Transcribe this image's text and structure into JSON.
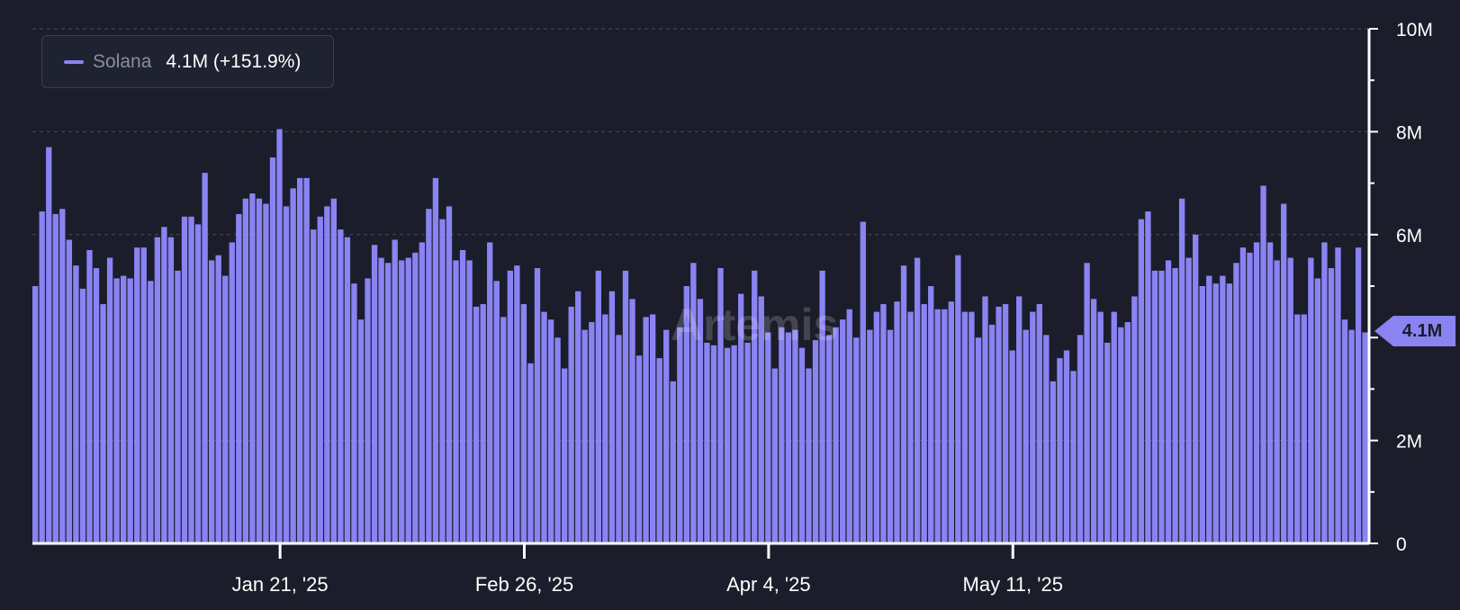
{
  "colors": {
    "background": "#1b1d2a",
    "bar": "#8a83f2",
    "grid": "#4a4d5c",
    "axis": "#ffffff",
    "text": "#ffffff",
    "legend_name": "#8a8d9c"
  },
  "legend": {
    "name": "Solana",
    "value": "4.1M (+151.9%)"
  },
  "watermark": "Artemis",
  "last_value_label": "4.1M",
  "chart_data": {
    "type": "bar",
    "series": [
      {
        "name": "Solana",
        "values": [
          5.0,
          6.45,
          7.7,
          6.4,
          6.5,
          5.9,
          5.4,
          4.95,
          5.7,
          5.35,
          4.65,
          5.55,
          5.15,
          5.2,
          5.15,
          5.75,
          5.75,
          5.1,
          5.95,
          6.15,
          5.95,
          5.3,
          6.35,
          6.35,
          6.2,
          7.2,
          5.5,
          5.6,
          5.2,
          5.85,
          6.4,
          6.7,
          6.8,
          6.7,
          6.6,
          7.5,
          8.05,
          6.55,
          6.9,
          7.1,
          7.1,
          6.1,
          6.35,
          6.55,
          6.7,
          6.1,
          5.95,
          5.05,
          4.35,
          5.15,
          5.8,
          5.55,
          5.45,
          5.9,
          5.5,
          5.55,
          5.65,
          5.85,
          6.5,
          7.1,
          6.3,
          6.55,
          5.5,
          5.7,
          5.5,
          4.6,
          4.65,
          5.85,
          5.1,
          4.4,
          5.3,
          5.4,
          4.65,
          3.5,
          5.35,
          4.5,
          4.35,
          4.0,
          3.4,
          4.6,
          4.9,
          4.15,
          4.3,
          5.3,
          4.45,
          4.9,
          4.05,
          5.3,
          4.75,
          3.65,
          4.4,
          4.45,
          3.6,
          4.15,
          3.15,
          4.2,
          5.0,
          5.45,
          4.75,
          3.9,
          3.85,
          5.35,
          3.8,
          3.85,
          4.85,
          3.9,
          5.3,
          4.8,
          4.1,
          3.4,
          4.2,
          4.1,
          4.15,
          3.8,
          3.4,
          3.95,
          5.3,
          4.05,
          4.2,
          4.35,
          4.55,
          4.0,
          6.25,
          4.15,
          4.5,
          4.65,
          4.15,
          4.7,
          5.4,
          4.5,
          5.55,
          4.65,
          5.0,
          4.55,
          4.55,
          4.7,
          5.6,
          4.5,
          4.5,
          4.0,
          4.8,
          4.25,
          4.6,
          4.65,
          3.75,
          4.8,
          4.15,
          4.5,
          4.65,
          4.05,
          3.15,
          3.6,
          3.75,
          3.35,
          4.05,
          5.45,
          4.75,
          4.5,
          3.9,
          4.5,
          4.2,
          4.3,
          4.8,
          6.3,
          6.45,
          5.3,
          5.3,
          5.5,
          5.35,
          6.7,
          5.55,
          6.0,
          5.0,
          5.2,
          5.05,
          5.2,
          5.05,
          5.45,
          5.75,
          5.65,
          5.85,
          6.95,
          5.85,
          5.5,
          6.6,
          5.55,
          4.45,
          4.45,
          5.55,
          5.15,
          5.85,
          5.35,
          5.75,
          4.35,
          4.15,
          5.75,
          4.1
        ]
      }
    ],
    "x_tick_labels": [
      "Jan 21, '25",
      "Feb 26, '25",
      "Apr 4, '25",
      "May 11, '25"
    ],
    "x_tick_indices": [
      36,
      72,
      108,
      144
    ],
    "y_ticks": [
      0,
      2,
      4,
      6,
      8,
      10
    ],
    "y_tick_labels": [
      "0",
      "2M",
      "",
      "6M",
      "8M",
      "10M"
    ],
    "y_unit": "M",
    "ylim": [
      0,
      10
    ],
    "grid": true,
    "legend_position": "top-left",
    "y_axis_side": "right"
  }
}
